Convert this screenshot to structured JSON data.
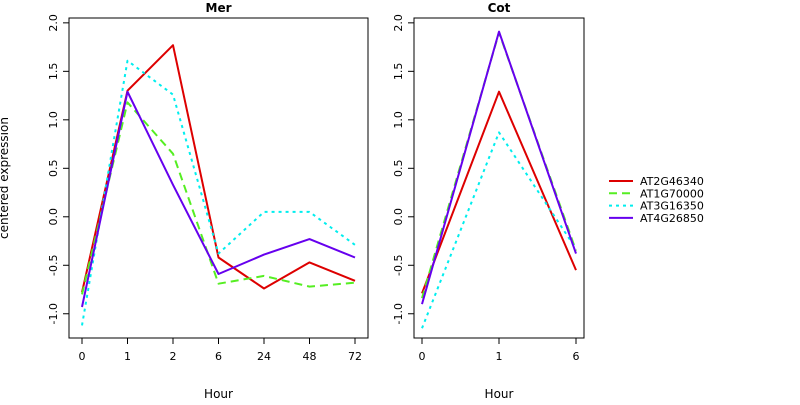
{
  "ylabel": "centered expression",
  "series_styles": [
    {
      "name": "AT2G46340",
      "color": "#dd0000",
      "dash": ""
    },
    {
      "name": "AT1G70000",
      "color": "#55ee22",
      "dash": "8 5"
    },
    {
      "name": "AT3G16350",
      "color": "#00eeee",
      "dash": "3 4"
    },
    {
      "name": "AT4G26850",
      "color": "#6600ee",
      "dash": ""
    }
  ],
  "chart_data": [
    {
      "type": "line",
      "title": "Mer",
      "xlabel": "Hour",
      "ylabel": "centered expression",
      "categories": [
        "0",
        "1",
        "2",
        "6",
        "24",
        "48",
        "72"
      ],
      "ylim": [
        -1.25,
        2.05
      ],
      "yticks": [
        -1.0,
        -0.5,
        0.0,
        0.5,
        1.0,
        1.5,
        2.0
      ],
      "grid": false,
      "series": [
        {
          "name": "AT2G46340",
          "values": [
            -0.78,
            1.3,
            1.77,
            -0.42,
            -0.74,
            -0.47,
            -0.66
          ]
        },
        {
          "name": "AT1G70000",
          "values": [
            -0.8,
            1.18,
            0.65,
            -0.69,
            -0.61,
            -0.72,
            -0.68
          ]
        },
        {
          "name": "AT3G16350",
          "values": [
            -1.12,
            1.61,
            1.26,
            -0.38,
            0.05,
            0.05,
            -0.29
          ]
        },
        {
          "name": "AT4G26850",
          "values": [
            -0.93,
            1.29,
            0.33,
            -0.59,
            -0.39,
            -0.23,
            -0.42
          ]
        }
      ]
    },
    {
      "type": "line",
      "title": "Cot",
      "xlabel": "Hour",
      "categories": [
        "0",
        "1",
        "6"
      ],
      "ylim": [
        -1.25,
        2.05
      ],
      "yticks": [
        -1.0,
        -0.5,
        0.0,
        0.5,
        1.0,
        1.5,
        2.0
      ],
      "grid": false,
      "series": [
        {
          "name": "AT2G46340",
          "values": [
            -0.79,
            1.29,
            -0.55
          ]
        },
        {
          "name": "AT1G70000",
          "values": [
            -0.84,
            1.9,
            -0.35
          ]
        },
        {
          "name": "AT3G16350",
          "values": [
            -1.15,
            0.87,
            -0.33
          ]
        },
        {
          "name": "AT4G26850",
          "values": [
            -0.9,
            1.91,
            -0.38
          ]
        }
      ]
    }
  ],
  "legend": {
    "position": "right",
    "entries": [
      "AT2G46340",
      "AT1G70000",
      "AT3G16350",
      "AT4G26850"
    ]
  }
}
